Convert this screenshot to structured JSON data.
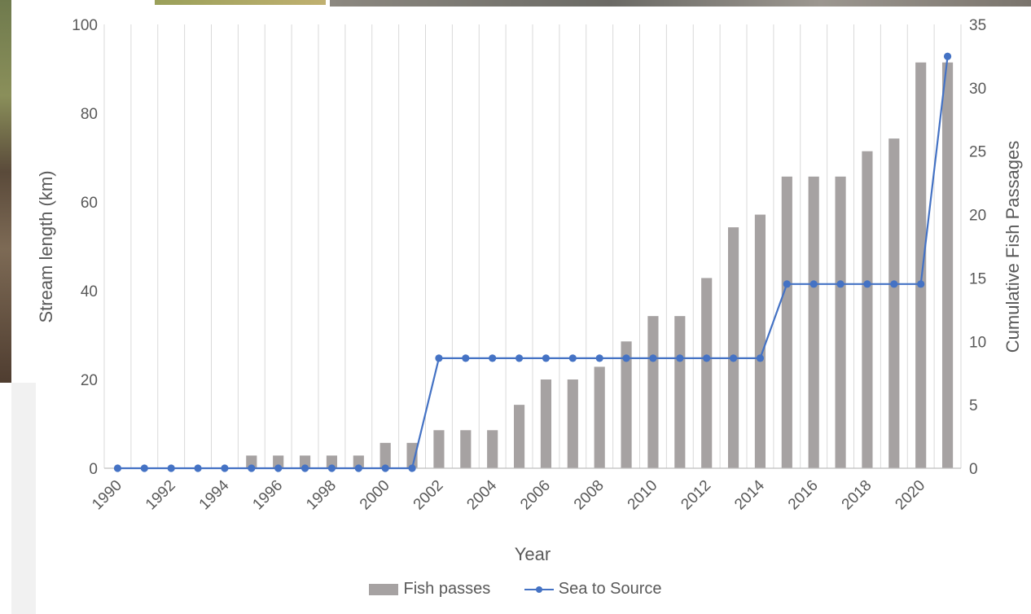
{
  "chart_data": {
    "type": "bar+line",
    "title": "",
    "xlabel": "Year",
    "ylabel_left": "Stream length (km)",
    "ylabel_right": "Cumulative Fish Passages",
    "years": [
      1990,
      1991,
      1992,
      1993,
      1994,
      1995,
      1996,
      1997,
      1998,
      1999,
      2000,
      2001,
      2002,
      2003,
      2004,
      2005,
      2006,
      2007,
      2008,
      2009,
      2010,
      2011,
      2012,
      2013,
      2014,
      2015,
      2016,
      2017,
      2018,
      2019,
      2020,
      2021
    ],
    "x_tick_labels": [
      "1990",
      "1992",
      "1994",
      "1996",
      "1998",
      "2000",
      "2002",
      "2004",
      "2006",
      "2008",
      "2010",
      "2012",
      "2014",
      "2016",
      "2018",
      "2020"
    ],
    "left_axis": {
      "min": 0,
      "max": 100,
      "step": 20,
      "ticks": [
        "0",
        "20",
        "40",
        "60",
        "80",
        "100"
      ]
    },
    "right_axis": {
      "min": 0,
      "max": 35,
      "step": 5,
      "ticks": [
        "0",
        "5",
        "10",
        "15",
        "20",
        "25",
        "30",
        "35"
      ]
    },
    "grid": "vertical",
    "legend_position": "bottom",
    "series": [
      {
        "name": "Fish passes",
        "type": "bar",
        "axis": "right",
        "color": "#a6a2a2",
        "values": [
          0,
          0,
          0,
          0,
          0,
          1,
          1,
          1,
          1,
          1,
          2,
          2,
          3,
          3,
          3,
          5,
          7,
          7,
          8,
          10,
          12,
          12,
          15,
          19,
          20,
          23,
          23,
          23,
          25,
          26,
          32,
          32
        ]
      },
      {
        "name": "Sea to Source",
        "type": "line",
        "axis": "left",
        "color": "#4472c4",
        "values": [
          0,
          0,
          0,
          0,
          0,
          0,
          0,
          0,
          0,
          0,
          0,
          0,
          24.8,
          24.8,
          24.8,
          24.8,
          24.8,
          24.8,
          24.8,
          24.8,
          24.8,
          24.8,
          24.8,
          24.8,
          24.8,
          41.5,
          41.5,
          41.5,
          41.5,
          41.5,
          41.5,
          92.8
        ]
      }
    ]
  }
}
